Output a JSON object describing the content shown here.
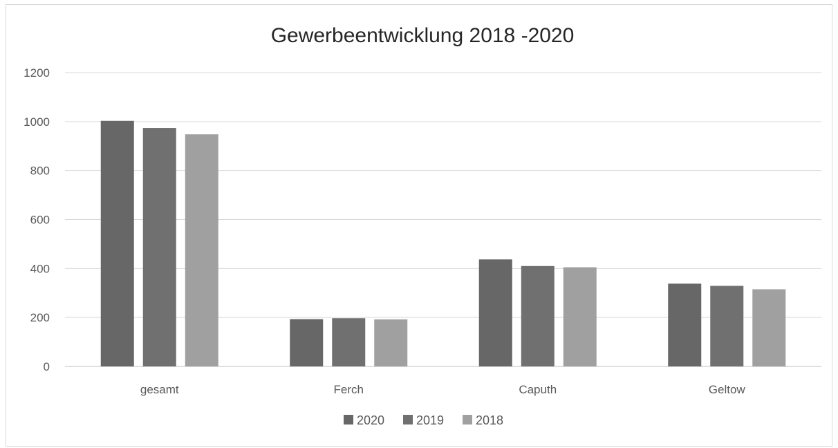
{
  "chart_data": {
    "type": "bar",
    "title": "Gewerbeentwicklung 2018 -2020",
    "xlabel": "",
    "ylabel": "",
    "categories": [
      "gesamt",
      "Ferch",
      "Caputh",
      "Geltow"
    ],
    "series": [
      {
        "name": "2020",
        "values": [
          1003,
          193,
          437,
          338
        ],
        "color": "#676767"
      },
      {
        "name": "2019",
        "values": [
          974,
          197,
          410,
          329
        ],
        "color": "#707070"
      },
      {
        "name": "2018",
        "values": [
          948,
          192,
          405,
          315
        ],
        "color": "#a0a0a0"
      }
    ],
    "ylim": [
      0,
      1200
    ],
    "yticks": [
      0,
      200,
      400,
      600,
      800,
      1000,
      1200
    ],
    "grid": true,
    "legend": "bottom"
  }
}
